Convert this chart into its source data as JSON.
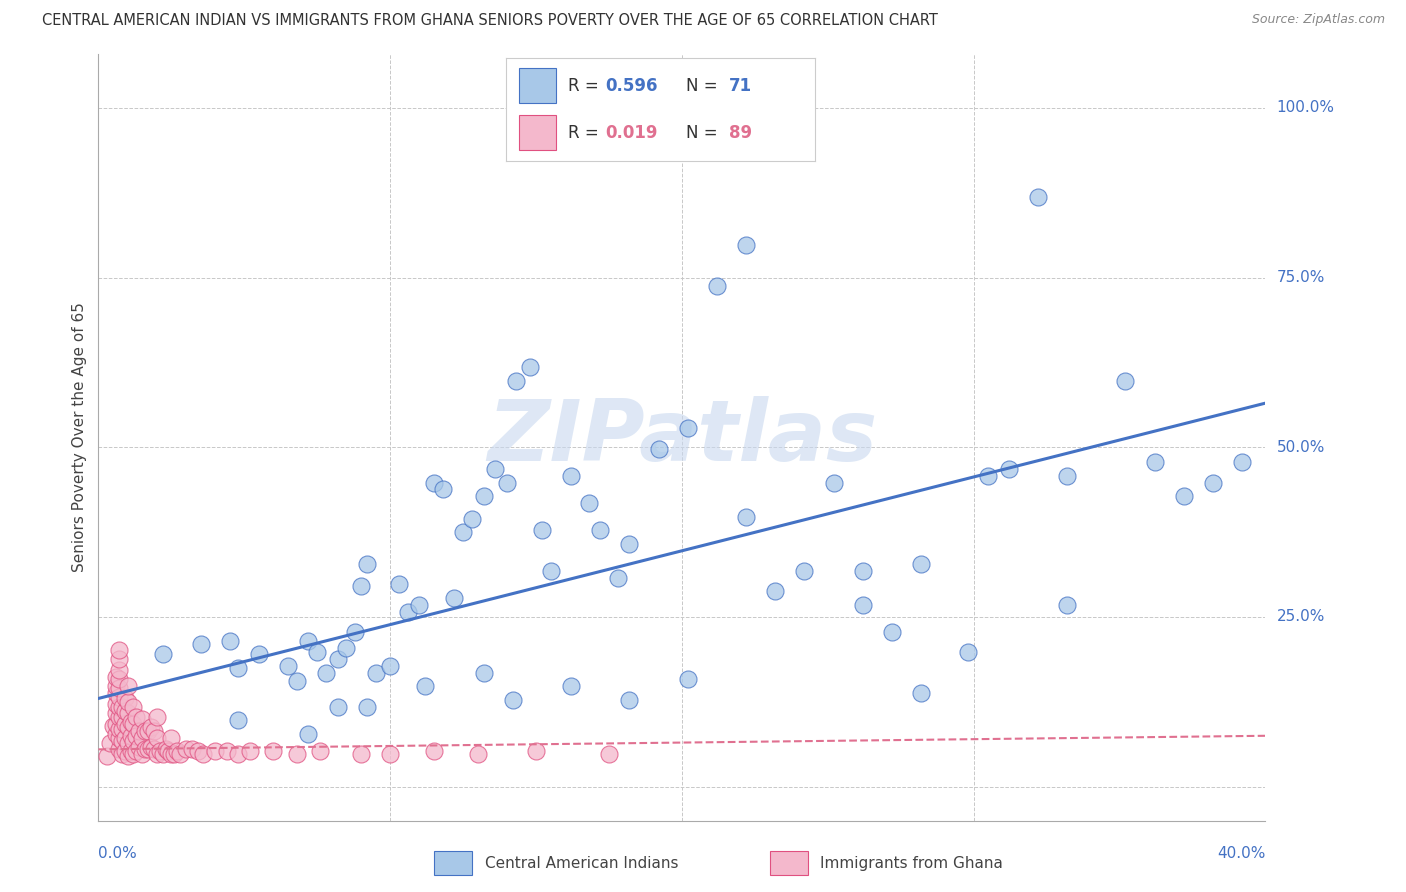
{
  "title": "CENTRAL AMERICAN INDIAN VS IMMIGRANTS FROM GHANA SENIORS POVERTY OVER THE AGE OF 65 CORRELATION CHART",
  "source": "Source: ZipAtlas.com",
  "ylabel": "Seniors Poverty Over the Age of 65",
  "xlim": [
    0.0,
    0.4
  ],
  "ylim": [
    -0.05,
    1.08
  ],
  "ytick_vals": [
    0.0,
    0.25,
    0.5,
    0.75,
    1.0
  ],
  "ytick_labels": [
    "",
    "25.0%",
    "50.0%",
    "75.0%",
    "100.0%"
  ],
  "xtick_vals": [
    0.0,
    0.1,
    0.2,
    0.3,
    0.4
  ],
  "xtick_labels": [
    "0.0%",
    "",
    "",
    "",
    "40.0%"
  ],
  "color_blue": "#a8c8e8",
  "color_blue_edge": "#4472c4",
  "color_pink": "#f4b8cc",
  "color_pink_edge": "#e05080",
  "color_line_blue": "#4472c4",
  "color_line_pink": "#e07090",
  "watermark": "ZIPatlas",
  "bg_color": "#ffffff",
  "grid_color": "#c8c8c8",
  "blue_scatter_x": [
    0.022,
    0.035,
    0.045,
    0.048,
    0.055,
    0.065,
    0.068,
    0.072,
    0.075,
    0.078,
    0.082,
    0.085,
    0.088,
    0.09,
    0.092,
    0.095,
    0.1,
    0.103,
    0.106,
    0.11,
    0.115,
    0.118,
    0.122,
    0.125,
    0.128,
    0.132,
    0.136,
    0.14,
    0.143,
    0.148,
    0.152,
    0.155,
    0.162,
    0.168,
    0.172,
    0.178,
    0.182,
    0.192,
    0.202,
    0.212,
    0.222,
    0.232,
    0.252,
    0.262,
    0.272,
    0.282,
    0.298,
    0.305,
    0.312,
    0.332,
    0.352,
    0.362,
    0.372,
    0.382,
    0.392,
    0.048,
    0.072,
    0.082,
    0.092,
    0.112,
    0.132,
    0.142,
    0.162,
    0.182,
    0.202,
    0.222,
    0.242,
    0.262,
    0.282,
    0.322,
    0.332
  ],
  "blue_scatter_y": [
    0.195,
    0.21,
    0.215,
    0.175,
    0.195,
    0.178,
    0.155,
    0.215,
    0.198,
    0.168,
    0.188,
    0.205,
    0.228,
    0.295,
    0.328,
    0.168,
    0.178,
    0.298,
    0.258,
    0.268,
    0.448,
    0.438,
    0.278,
    0.375,
    0.395,
    0.428,
    0.468,
    0.448,
    0.598,
    0.618,
    0.378,
    0.318,
    0.458,
    0.418,
    0.378,
    0.308,
    0.358,
    0.498,
    0.528,
    0.738,
    0.398,
    0.288,
    0.448,
    0.318,
    0.228,
    0.138,
    0.198,
    0.458,
    0.468,
    0.458,
    0.598,
    0.478,
    0.428,
    0.448,
    0.478,
    0.098,
    0.078,
    0.118,
    0.118,
    0.148,
    0.168,
    0.128,
    0.148,
    0.128,
    0.158,
    0.798,
    0.318,
    0.268,
    0.328,
    0.868,
    0.268
  ],
  "pink_scatter_x": [
    0.003,
    0.004,
    0.005,
    0.006,
    0.006,
    0.006,
    0.006,
    0.006,
    0.006,
    0.006,
    0.007,
    0.007,
    0.007,
    0.007,
    0.007,
    0.007,
    0.007,
    0.007,
    0.007,
    0.007,
    0.007,
    0.008,
    0.008,
    0.008,
    0.008,
    0.008,
    0.009,
    0.009,
    0.009,
    0.009,
    0.009,
    0.01,
    0.01,
    0.01,
    0.01,
    0.01,
    0.01,
    0.011,
    0.011,
    0.011,
    0.012,
    0.012,
    0.012,
    0.012,
    0.013,
    0.013,
    0.013,
    0.014,
    0.014,
    0.015,
    0.015,
    0.015,
    0.016,
    0.016,
    0.017,
    0.017,
    0.018,
    0.018,
    0.019,
    0.019,
    0.02,
    0.02,
    0.02,
    0.021,
    0.022,
    0.023,
    0.024,
    0.025,
    0.025,
    0.026,
    0.027,
    0.028,
    0.03,
    0.032,
    0.034,
    0.036,
    0.04,
    0.044,
    0.048,
    0.052,
    0.06,
    0.068,
    0.076,
    0.09,
    0.1,
    0.115,
    0.13,
    0.15,
    0.175
  ],
  "pink_scatter_y": [
    0.045,
    0.065,
    0.09,
    0.078,
    0.092,
    0.108,
    0.122,
    0.138,
    0.148,
    0.162,
    0.055,
    0.072,
    0.085,
    0.102,
    0.118,
    0.132,
    0.145,
    0.158,
    0.172,
    0.188,
    0.202,
    0.048,
    0.068,
    0.085,
    0.102,
    0.118,
    0.052,
    0.072,
    0.092,
    0.112,
    0.13,
    0.045,
    0.065,
    0.088,
    0.108,
    0.125,
    0.148,
    0.052,
    0.075,
    0.095,
    0.048,
    0.068,
    0.092,
    0.118,
    0.052,
    0.075,
    0.102,
    0.058,
    0.082,
    0.048,
    0.072,
    0.1,
    0.055,
    0.082,
    0.055,
    0.082,
    0.058,
    0.088,
    0.055,
    0.082,
    0.048,
    0.072,
    0.102,
    0.052,
    0.048,
    0.055,
    0.052,
    0.048,
    0.072,
    0.048,
    0.052,
    0.048,
    0.055,
    0.055,
    0.052,
    0.048,
    0.052,
    0.052,
    0.048,
    0.052,
    0.052,
    0.048,
    0.052,
    0.048,
    0.048,
    0.052,
    0.048,
    0.052,
    0.048
  ],
  "blue_line_x": [
    0.0,
    0.4
  ],
  "blue_line_y": [
    0.13,
    0.565
  ],
  "pink_line_x": [
    0.0,
    0.4
  ],
  "pink_line_y": [
    0.055,
    0.075
  ],
  "title_fontsize": 10.5,
  "axis_fontsize": 11,
  "legend_fontsize": 12
}
